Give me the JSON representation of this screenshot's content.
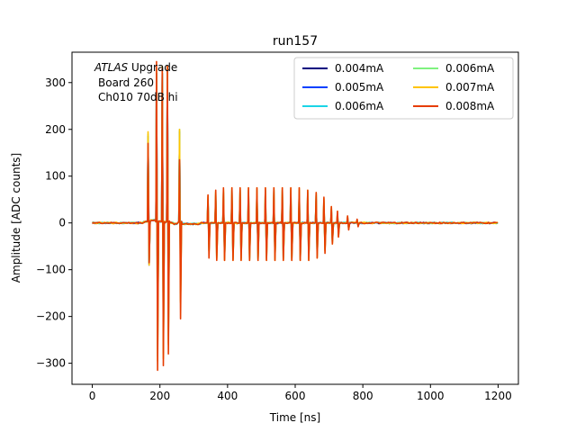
{
  "chart_data": {
    "type": "line",
    "title": "run157",
    "xlabel": "Time [ns]",
    "ylabel": "Amplitude [ADC counts]",
    "xlim": [
      -60,
      1260
    ],
    "ylim": [
      -345,
      365
    ],
    "xticks": [
      0,
      200,
      400,
      600,
      800,
      1000,
      1200
    ],
    "yticks": [
      -300,
      -200,
      -100,
      0,
      100,
      200,
      300
    ],
    "grid": false,
    "legend_position": "upper-right",
    "legend_columns": 2,
    "annotation": {
      "line1_italic": "ATLAS",
      "line1_rest": " Upgrade",
      "line2": "Board 260",
      "line3": "Ch010 70dB hi"
    },
    "time_range": [
      0,
      1200
    ],
    "pulse_times": [
      165,
      190,
      207,
      222,
      258,
      342,
      365,
      388,
      413,
      437,
      462,
      487,
      512,
      537,
      562,
      587,
      612,
      637,
      662,
      685,
      707,
      725,
      755,
      783
    ],
    "series": [
      {
        "name": "0.004mA",
        "color": "#00007f",
        "amplitudes": [
          [
            185,
            -90
          ],
          [
            320,
            -210
          ],
          [
            320,
            -200
          ],
          [
            330,
            -195
          ],
          [
            195,
            -110
          ],
          [
            45,
            -45
          ],
          [
            50,
            -55
          ],
          [
            50,
            -60
          ],
          [
            50,
            -60
          ],
          [
            50,
            -60
          ],
          [
            50,
            -60
          ],
          [
            50,
            -60
          ],
          [
            50,
            -60
          ],
          [
            50,
            -60
          ],
          [
            50,
            -60
          ],
          [
            50,
            -60
          ],
          [
            50,
            -60
          ],
          [
            50,
            -60
          ],
          [
            50,
            -55
          ],
          [
            35,
            -45
          ],
          [
            25,
            -35
          ],
          [
            15,
            -20
          ],
          [
            10,
            -10
          ],
          [
            5,
            -5
          ]
        ]
      },
      {
        "name": "0.005mA",
        "color": "#0040ff",
        "amplitudes": [
          [
            185,
            -60
          ],
          [
            320,
            -210
          ],
          [
            320,
            -200
          ],
          [
            330,
            -195
          ],
          [
            195,
            -110
          ],
          [
            45,
            -40
          ],
          [
            50,
            -55
          ],
          [
            50,
            -60
          ],
          [
            50,
            -60
          ],
          [
            50,
            -60
          ],
          [
            50,
            -60
          ],
          [
            50,
            -60
          ],
          [
            50,
            -60
          ],
          [
            50,
            -60
          ],
          [
            50,
            -60
          ],
          [
            50,
            -60
          ],
          [
            50,
            -60
          ],
          [
            50,
            -60
          ],
          [
            50,
            -55
          ],
          [
            35,
            -45
          ],
          [
            25,
            -35
          ],
          [
            15,
            -20
          ],
          [
            10,
            -10
          ],
          [
            5,
            -5
          ]
        ]
      },
      {
        "name": "0.006mA",
        "color": "#1ad4e6",
        "amplitudes": [
          [
            185,
            -85
          ],
          [
            320,
            -270
          ],
          [
            320,
            -270
          ],
          [
            330,
            -240
          ],
          [
            195,
            -150
          ],
          [
            50,
            -55
          ],
          [
            60,
            -70
          ],
          [
            65,
            -75
          ],
          [
            70,
            -75
          ],
          [
            70,
            -75
          ],
          [
            70,
            -75
          ],
          [
            70,
            -75
          ],
          [
            70,
            -75
          ],
          [
            70,
            -75
          ],
          [
            70,
            -75
          ],
          [
            70,
            -75
          ],
          [
            70,
            -75
          ],
          [
            65,
            -75
          ],
          [
            60,
            -70
          ],
          [
            45,
            -55
          ],
          [
            30,
            -40
          ],
          [
            20,
            -25
          ],
          [
            12,
            -12
          ],
          [
            6,
            -6
          ]
        ]
      },
      {
        "name": "0.006mA",
        "color": "#7ff27f",
        "amplitudes": [
          [
            190,
            -88
          ],
          [
            320,
            -285
          ],
          [
            320,
            -280
          ],
          [
            330,
            -255
          ],
          [
            200,
            -165
          ],
          [
            55,
            -60
          ],
          [
            65,
            -75
          ],
          [
            68,
            -78
          ],
          [
            70,
            -78
          ],
          [
            70,
            -78
          ],
          [
            70,
            -78
          ],
          [
            70,
            -78
          ],
          [
            70,
            -78
          ],
          [
            70,
            -78
          ],
          [
            70,
            -78
          ],
          [
            70,
            -78
          ],
          [
            70,
            -78
          ],
          [
            68,
            -78
          ],
          [
            62,
            -72
          ],
          [
            48,
            -58
          ],
          [
            32,
            -42
          ],
          [
            22,
            -28
          ],
          [
            12,
            -12
          ],
          [
            6,
            -6
          ]
        ]
      },
      {
        "name": "0.007mA",
        "color": "#ffc400",
        "amplitudes": [
          [
            195,
            -90
          ],
          [
            330,
            -295
          ],
          [
            335,
            -290
          ],
          [
            335,
            -260
          ],
          [
            200,
            -170
          ],
          [
            58,
            -60
          ],
          [
            68,
            -78
          ],
          [
            72,
            -80
          ],
          [
            75,
            -80
          ],
          [
            75,
            -80
          ],
          [
            75,
            -80
          ],
          [
            75,
            -80
          ],
          [
            75,
            -80
          ],
          [
            75,
            -80
          ],
          [
            75,
            -80
          ],
          [
            75,
            -80
          ],
          [
            75,
            -80
          ],
          [
            70,
            -80
          ],
          [
            65,
            -75
          ],
          [
            52,
            -60
          ],
          [
            35,
            -45
          ],
          [
            25,
            -30
          ],
          [
            14,
            -14
          ],
          [
            7,
            -7
          ]
        ]
      },
      {
        "name": "0.008mA",
        "color": "#e63c00",
        "amplitudes": [
          [
            170,
            -85
          ],
          [
            345,
            -315
          ],
          [
            330,
            -305
          ],
          [
            335,
            -280
          ],
          [
            135,
            -205
          ],
          [
            60,
            -75
          ],
          [
            70,
            -80
          ],
          [
            75,
            -80
          ],
          [
            75,
            -80
          ],
          [
            75,
            -80
          ],
          [
            75,
            -80
          ],
          [
            75,
            -80
          ],
          [
            75,
            -80
          ],
          [
            75,
            -80
          ],
          [
            75,
            -80
          ],
          [
            75,
            -80
          ],
          [
            75,
            -80
          ],
          [
            70,
            -80
          ],
          [
            65,
            -75
          ],
          [
            55,
            -65
          ],
          [
            35,
            -45
          ],
          [
            25,
            -30
          ],
          [
            15,
            -15
          ],
          [
            8,
            -8
          ]
        ]
      }
    ]
  }
}
